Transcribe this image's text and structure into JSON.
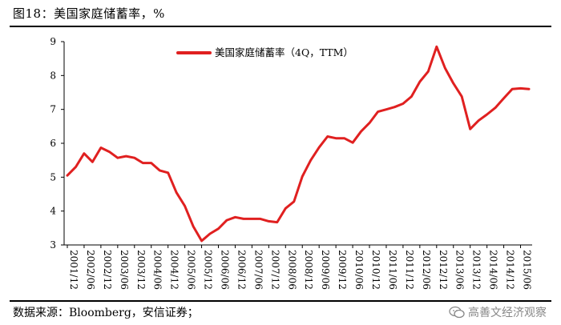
{
  "header": {
    "title": "图18：美国家庭储蓄率，%"
  },
  "footer": {
    "source": "数据来源：Bloomberg，安信证券；",
    "watermark": "高善文经济观察"
  },
  "colors": {
    "series": "#e02020",
    "axis": "#000000"
  },
  "chart_data": {
    "type": "line",
    "title": "图18：美国家庭储蓄率，%",
    "xlabel": "",
    "ylabel": "",
    "ylim": [
      3,
      9
    ],
    "yticks": [
      3,
      4,
      5,
      6,
      7,
      8,
      9
    ],
    "legend_position": "top-center",
    "x_tick_labels": [
      "2001/12",
      "2002/06",
      "2002/12",
      "2003/06",
      "2003/12",
      "2004/06",
      "2004/12",
      "2005/06",
      "2005/12",
      "2006/06",
      "2006/12",
      "2007/06",
      "2007/12",
      "2008/06",
      "2008/12",
      "2009/06",
      "2009/12",
      "2010/06",
      "2010/12",
      "2011/06",
      "2011/12",
      "2012/06",
      "2012/12",
      "2013/06",
      "2013/12",
      "2014/06",
      "2014/12",
      "2015/06"
    ],
    "series": [
      {
        "name": "美国家庭储蓄率（4Q，TTM）",
        "color": "#e02020",
        "quarters_start": "2001/12",
        "values": [
          5.05,
          5.3,
          5.7,
          5.45,
          5.87,
          5.75,
          5.57,
          5.62,
          5.57,
          5.42,
          5.42,
          5.2,
          5.13,
          4.55,
          4.15,
          3.55,
          3.12,
          3.33,
          3.48,
          3.73,
          3.82,
          3.77,
          3.77,
          3.77,
          3.7,
          3.67,
          4.08,
          4.28,
          5.02,
          5.5,
          5.88,
          6.2,
          6.15,
          6.15,
          6.02,
          6.35,
          6.6,
          6.93,
          7.0,
          7.07,
          7.17,
          7.38,
          7.82,
          8.12,
          8.85,
          8.22,
          7.77,
          7.38,
          6.42,
          6.67,
          6.85,
          7.05,
          7.33,
          7.6,
          7.62,
          7.6
        ]
      }
    ]
  }
}
